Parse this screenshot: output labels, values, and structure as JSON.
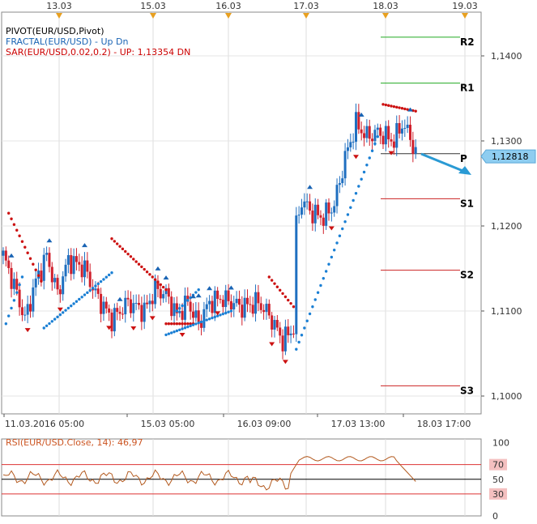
{
  "chart_data": [
    {
      "type": "candlestick",
      "symbol": "EUR/USD",
      "x_axis_top": [
        "13.03",
        "15.03",
        "16.03",
        "17.03",
        "18.03",
        "19.03"
      ],
      "x_axis_bottom": [
        "11.03.2016 05:00",
        "15.03 05:00",
        "16.03 09:00",
        "17.03 13:00",
        "18.03 17:00"
      ],
      "ylim": [
        1.096,
        1.144
      ],
      "y_ticks": [
        {
          "value": 1.1,
          "label": "1,1000"
        },
        {
          "value": 1.11,
          "label": "1,1100"
        },
        {
          "value": 1.12,
          "label": "1,1200"
        },
        {
          "value": 1.13,
          "label": "1,1300"
        },
        {
          "value": 1.14,
          "label": "1,1400"
        }
      ],
      "current_price": {
        "value": 1.12818,
        "label": "1,12818"
      },
      "legend": [
        {
          "text": "PIVOT(EUR/USD,Pivot)",
          "color": "#000000"
        },
        {
          "text": "FRACTAL(EUR/USD) -  Up  Dn",
          "color": "#1a64b4"
        },
        {
          "text": "SAR(EUR/USD,0.02,0.2) -  UP: 1,13354  DN",
          "color": "#cc0000"
        }
      ],
      "pivot_levels": [
        {
          "name": "R2",
          "value": 1.1422,
          "color": "#22aa22"
        },
        {
          "name": "R1",
          "value": 1.1368,
          "color": "#22aa22"
        },
        {
          "name": "P",
          "value": 1.1285,
          "color": "#333333"
        },
        {
          "name": "S1",
          "value": 1.1232,
          "color": "#cc2222"
        },
        {
          "name": "S2",
          "value": 1.1148,
          "color": "#cc2222"
        },
        {
          "name": "S3",
          "value": 1.1012,
          "color": "#cc2222"
        }
      ],
      "sar_dots": [
        {
          "from": 1,
          "to": 7,
          "start": 1.1085,
          "end": 1.114,
          "color": "#1a7fd4"
        },
        {
          "from": 2,
          "to": 14,
          "start": 1.1215,
          "end": 1.1135,
          "color": "#cc1111"
        },
        {
          "from": 15,
          "to": 40,
          "start": 1.108,
          "end": 1.1145,
          "color": "#1a7fd4"
        },
        {
          "from": 40,
          "to": 60,
          "start": 1.1185,
          "end": 1.1125,
          "color": "#cc1111"
        },
        {
          "from": 60,
          "to": 70,
          "start": 1.1085,
          "end": 1.1085,
          "color": "#cc1111"
        },
        {
          "from": 64,
          "to": 72,
          "start": 1.11,
          "end": 1.1125,
          "color": "#1a7fd4"
        },
        {
          "from": 60,
          "to": 84,
          "start": 1.1072,
          "end": 1.11,
          "color": "#1a7fd4"
        },
        {
          "from": 98,
          "to": 107,
          "start": 1.114,
          "end": 1.1105,
          "color": "#cc1111"
        },
        {
          "from": 108,
          "to": 138,
          "start": 1.1055,
          "end": 1.1305,
          "color": "#1a7fd4"
        },
        {
          "from": 140,
          "to": 152,
          "start": 1.1343,
          "end": 1.1335,
          "color": "#cc1111"
        }
      ],
      "fractal_up_index": [
        3,
        17,
        30,
        43,
        57,
        60,
        70,
        72,
        76,
        84,
        113,
        132,
        150
      ],
      "fractal_dn_index": [
        9,
        21,
        39,
        48,
        55,
        66,
        79,
        99,
        104,
        121,
        130,
        143
      ]
    },
    {
      "type": "line",
      "title": "RSI(EUR/USD.Close, 14): 46,97",
      "value": 46.97,
      "ylim": [
        0,
        100
      ],
      "y_ticks": [
        {
          "value": 100,
          "label": "100"
        },
        {
          "value": 70,
          "label": "70"
        },
        {
          "value": 50,
          "label": "50"
        },
        {
          "value": 30,
          "label": "30"
        },
        {
          "value": 0,
          "label": "0"
        }
      ],
      "levels": [
        {
          "value": 70,
          "color": "#dd3333"
        },
        {
          "value": 50,
          "color": "#000000"
        },
        {
          "value": 30,
          "color": "#dd3333"
        }
      ]
    }
  ]
}
